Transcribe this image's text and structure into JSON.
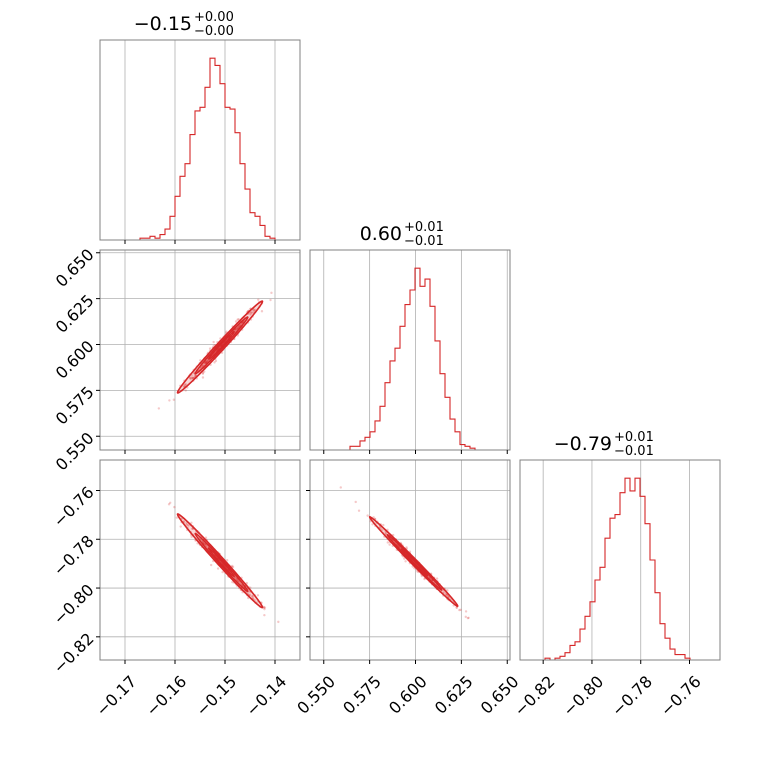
{
  "chart_data": {
    "type": "corner",
    "color": "#d62728",
    "grid": true,
    "parameters": [
      {
        "lim": [
          -0.175,
          -0.135
        ],
        "ticks": [
          -0.17,
          -0.16,
          -0.15,
          -0.14
        ],
        "tick_labels": [
          "−0.17",
          "−0.16",
          "−0.15",
          "−0.14"
        ]
      },
      {
        "lim": [
          0.5425,
          0.6515
        ],
        "ticks": [
          0.55,
          0.575,
          0.6,
          0.625,
          0.65
        ],
        "tick_labels": [
          "0.550",
          "0.575",
          "0.600",
          "0.625",
          "0.650"
        ]
      },
      {
        "lim": [
          -0.8295,
          -0.7475
        ],
        "ticks": [
          -0.82,
          -0.8,
          -0.78,
          -0.76
        ],
        "tick_labels": [
          "−0.82",
          "−0.80",
          "−0.78",
          "−0.76"
        ]
      }
    ],
    "titles": [
      {
        "value": "−0.15",
        "plus": "+0.00",
        "minus": "−0.00"
      },
      {
        "value": "0.60",
        "plus": "+0.01",
        "minus": "−0.01"
      },
      {
        "value": "−0.79",
        "plus": "+0.01",
        "minus": "−0.01"
      }
    ],
    "marginals": [
      {
        "counts": [
          0,
          0,
          0,
          0,
          0,
          0,
          0,
          0,
          1,
          1,
          2,
          1,
          3,
          6,
          13,
          24,
          35,
          42,
          58,
          71,
          73,
          84,
          100,
          96,
          86,
          73,
          72,
          59,
          42,
          28,
          15,
          13,
          8,
          2,
          1,
          0,
          0,
          0,
          0,
          0
        ]
      },
      {
        "counts": [
          0,
          0,
          0,
          0,
          0,
          0,
          0,
          0,
          2,
          2,
          5,
          7,
          10,
          16,
          24,
          37,
          49,
          56,
          68,
          80,
          88,
          100,
          90,
          94,
          79,
          60,
          42,
          29,
          17,
          10,
          3,
          2,
          1,
          0,
          0,
          0,
          0,
          0,
          0,
          0
        ]
      },
      {
        "counts": [
          0,
          0,
          0,
          0,
          0,
          1,
          0,
          1,
          2,
          4,
          8,
          10,
          17,
          24,
          32,
          44,
          51,
          67,
          78,
          80,
          92,
          100,
          93,
          100,
          90,
          75,
          55,
          37,
          20,
          12,
          6,
          3,
          3,
          1,
          0,
          0,
          0,
          0,
          0,
          0
        ]
      }
    ],
    "pairs": [
      {
        "x_param": 0,
        "y_param": 1,
        "center": [
          -0.1507,
          0.5995
        ],
        "spread": [
          0.0036,
          0.0107
        ],
        "rho": 0.983,
        "outer_range": [
          -0.1595,
          -0.1425
        ]
      },
      {
        "x_param": 0,
        "y_param": 2,
        "center": [
          -0.1507,
          -0.7895
        ],
        "spread": [
          0.0036,
          0.0082
        ],
        "rho": -0.985,
        "outer_range": [
          -0.1595,
          -0.1425
        ]
      },
      {
        "x_param": 1,
        "y_param": 2,
        "center": [
          0.5995,
          -0.7895
        ],
        "spread": [
          0.0107,
          0.0082
        ],
        "rho": -0.992,
        "outer_range": [
          0.575,
          0.623
        ]
      }
    ]
  }
}
